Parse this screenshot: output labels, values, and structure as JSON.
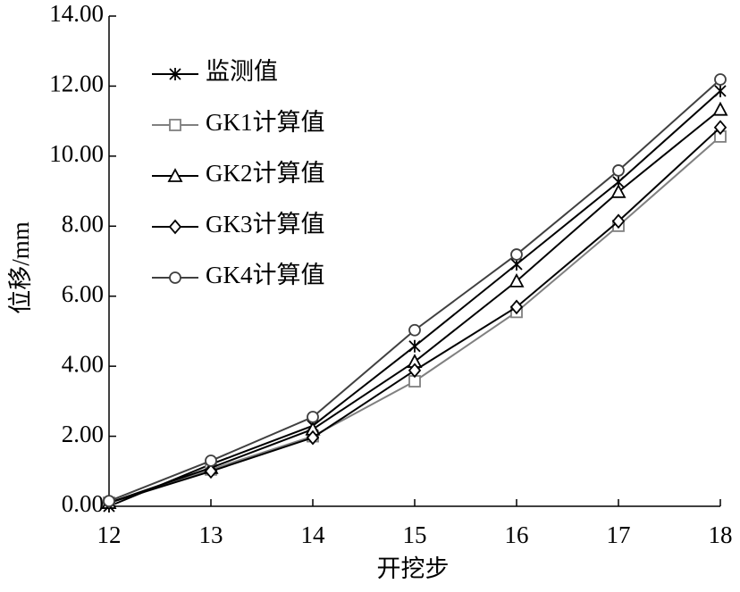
{
  "chart_data": {
    "type": "line",
    "x_label": "开挖步",
    "y_label": "位移/mm",
    "x": [
      12,
      13,
      14,
      15,
      16,
      17,
      18
    ],
    "series": [
      {
        "name": "监测值",
        "color": "#000000",
        "marker": "x",
        "values": [
          0.0,
          1.2,
          2.3,
          4.57,
          6.91,
          9.26,
          11.86
        ]
      },
      {
        "name": "GK1计算值",
        "color": "#808080",
        "marker": "square",
        "values": [
          0.1,
          1.05,
          2.0,
          3.57,
          5.55,
          8.01,
          10.56
        ]
      },
      {
        "name": "GK2计算值",
        "color": "#000000",
        "marker": "triangle",
        "values": [
          0.1,
          1.1,
          2.2,
          4.13,
          6.43,
          8.98,
          11.33
        ]
      },
      {
        "name": "GK3计算值",
        "color": "#000000",
        "marker": "diamond",
        "values": [
          0.1,
          1.0,
          1.96,
          3.88,
          5.69,
          8.14,
          10.82
        ]
      },
      {
        "name": "GK4计算值",
        "color": "#404040",
        "marker": "circle",
        "values": [
          0.15,
          1.3,
          2.55,
          5.03,
          7.19,
          9.59,
          12.19
        ]
      }
    ],
    "xlim": [
      12,
      18
    ],
    "xticks": [
      12,
      13,
      14,
      15,
      16,
      17,
      18
    ],
    "ylim": [
      0,
      14
    ],
    "yticks": [
      {
        "value": 0,
        "label": "0.00"
      },
      {
        "value": 2,
        "label": "2.00"
      },
      {
        "value": 4,
        "label": "4.00"
      },
      {
        "value": 6,
        "label": "6.00"
      },
      {
        "value": 8,
        "label": "8.00"
      },
      {
        "value": 10,
        "label": "10.00"
      },
      {
        "value": 12,
        "label": "12.00"
      },
      {
        "value": 14,
        "label": "14.00"
      }
    ],
    "legend": "upper left",
    "grid": false
  }
}
